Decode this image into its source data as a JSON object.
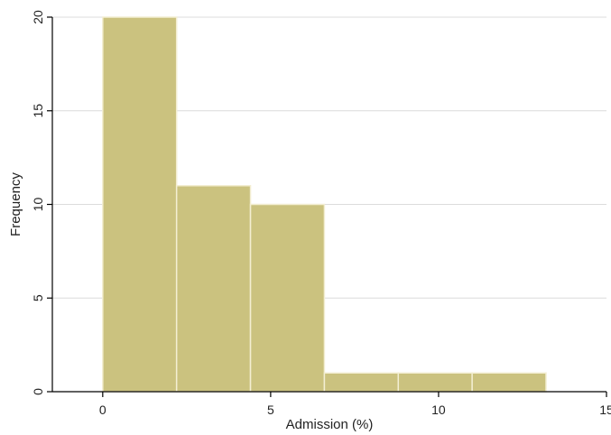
{
  "chart_data": {
    "type": "bar",
    "subtype": "histogram",
    "xlabel": "Admission (%)",
    "ylabel": "Frequency",
    "xlim": [
      -1.5,
      15
    ],
    "ylim": [
      0,
      20
    ],
    "xticks": [
      0,
      5,
      10,
      15
    ],
    "yticks": [
      0,
      5,
      10,
      15,
      20
    ],
    "bins": [
      {
        "start": 0.0,
        "end": 2.2,
        "value": 20
      },
      {
        "start": 2.2,
        "end": 4.4,
        "value": 11
      },
      {
        "start": 4.4,
        "end": 6.6,
        "value": 10
      },
      {
        "start": 6.6,
        "end": 8.8,
        "value": 1
      },
      {
        "start": 8.8,
        "end": 11.0,
        "value": 1
      },
      {
        "start": 11.0,
        "end": 13.2,
        "value": 1
      }
    ],
    "grid": "horizontal",
    "bar_color": "#cbc27f",
    "bar_edge_color": "#f3eed2",
    "grid_color": "#dcdcdc",
    "axis_color": "#000000"
  }
}
